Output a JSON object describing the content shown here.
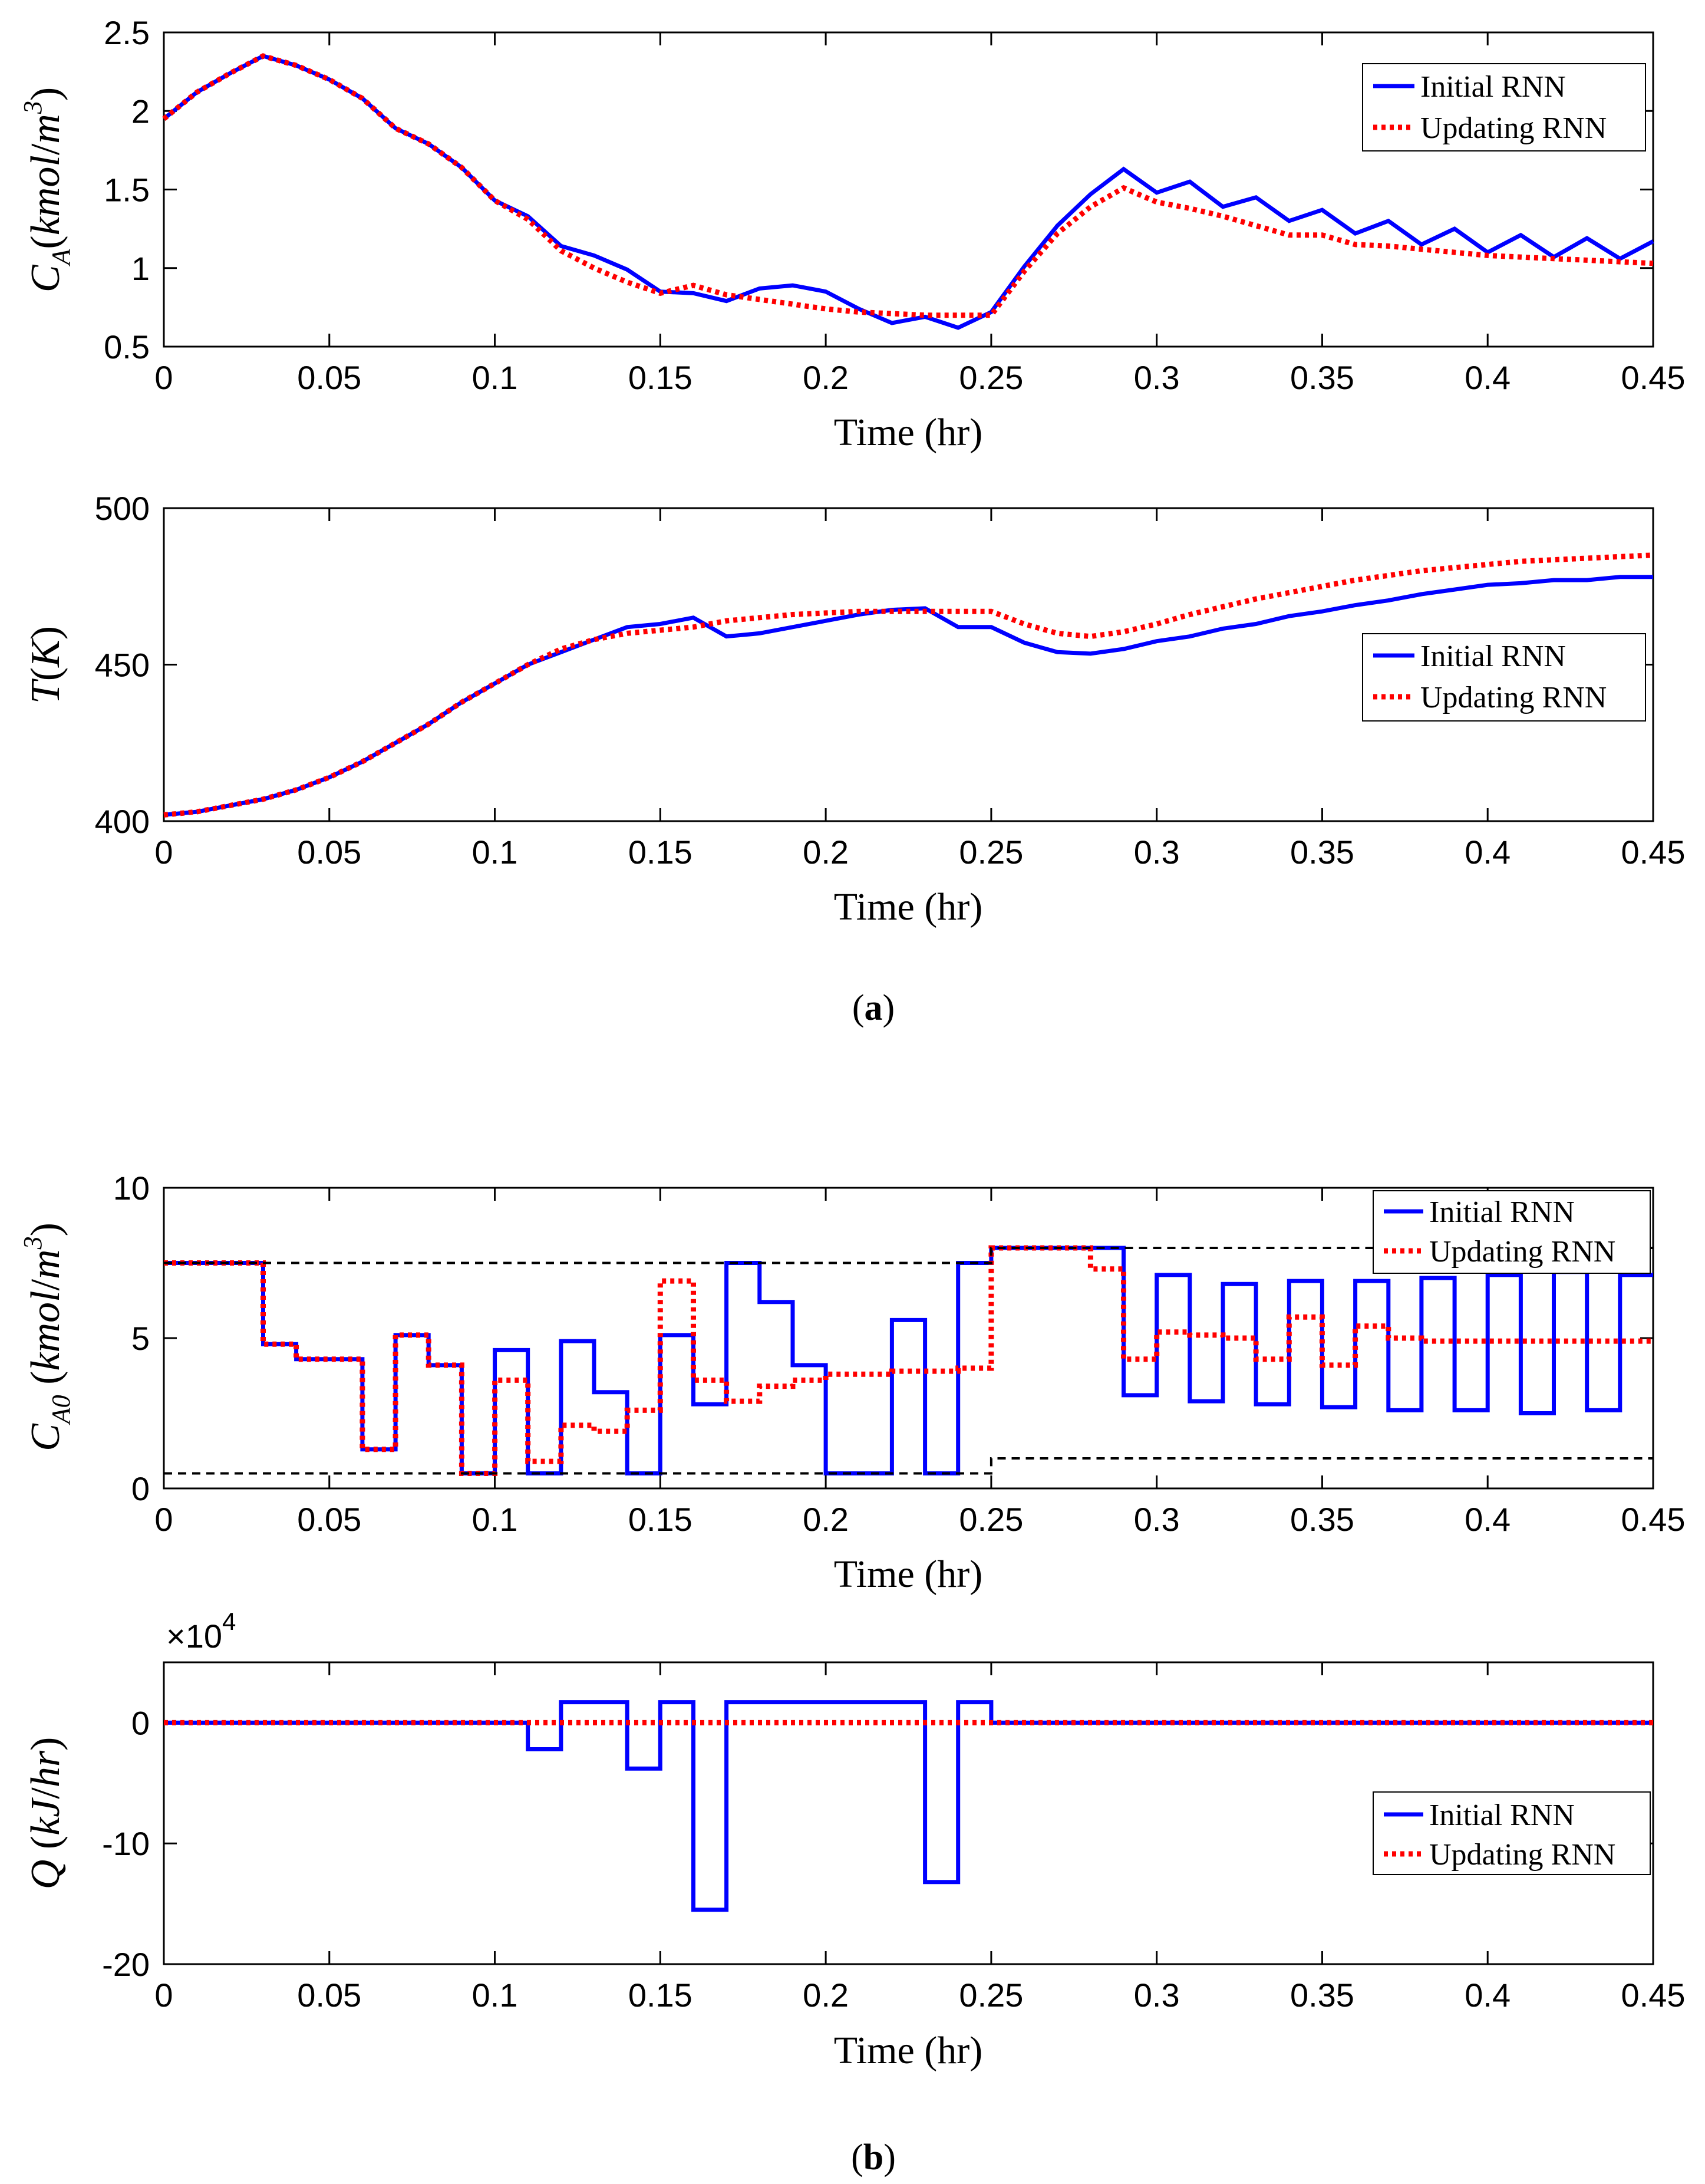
{
  "colors": {
    "initial": "#0000ff",
    "updating": "#ff0000",
    "bound": "#000000"
  },
  "legend": {
    "initial": "Initial RNN",
    "updating": "Updating RNN"
  },
  "captions": {
    "a": "a",
    "b": "b"
  },
  "chart_data": [
    {
      "id": "ca",
      "type": "line",
      "xlabel": "Time (hr)",
      "ylabel": "C_A(kmol/m^3)",
      "xlim": [
        0,
        0.45
      ],
      "ylim": [
        0.5,
        2.5
      ],
      "xticks": [
        0,
        0.05,
        0.1,
        0.15,
        0.2,
        0.25,
        0.3,
        0.35,
        0.4,
        0.45
      ],
      "xticklabels": [
        "0",
        "0.05",
        "0.1",
        "0.15",
        "0.2",
        "0.25",
        "0.3",
        "0.35",
        "0.4",
        "0.45"
      ],
      "yticks": [
        0.5,
        1,
        1.5,
        2,
        2.5
      ],
      "yticklabels": [
        "0.5",
        "1",
        "1.5",
        "2",
        "2.5"
      ],
      "legend_position": "top-right",
      "series": [
        {
          "name": "Initial RNN",
          "style": "solid",
          "x": [
            0,
            0.01,
            0.02,
            0.03,
            0.04,
            0.05,
            0.06,
            0.07,
            0.08,
            0.09,
            0.1,
            0.11,
            0.12,
            0.13,
            0.14,
            0.15,
            0.16,
            0.17,
            0.18,
            0.19,
            0.2,
            0.21,
            0.22,
            0.23,
            0.24,
            0.25,
            0.26,
            0.27,
            0.28,
            0.29,
            0.3,
            0.31,
            0.32,
            0.33,
            0.34,
            0.35,
            0.36,
            0.37,
            0.38,
            0.39,
            0.4,
            0.41,
            0.42,
            0.43,
            0.44,
            0.45
          ],
          "y": [
            1.95,
            2.12,
            2.24,
            2.35,
            2.29,
            2.2,
            2.08,
            1.89,
            1.79,
            1.64,
            1.43,
            1.33,
            1.14,
            1.08,
            0.99,
            0.85,
            0.84,
            0.79,
            0.87,
            0.89,
            0.85,
            0.74,
            0.65,
            0.69,
            0.62,
            0.72,
            1.01,
            1.27,
            1.47,
            1.63,
            1.48,
            1.55,
            1.39,
            1.45,
            1.3,
            1.37,
            1.22,
            1.3,
            1.15,
            1.25,
            1.1,
            1.21,
            1.07,
            1.19,
            1.06,
            1.17
          ]
        },
        {
          "name": "Updating RNN",
          "style": "dotted",
          "x": [
            0,
            0.01,
            0.02,
            0.03,
            0.04,
            0.05,
            0.06,
            0.07,
            0.08,
            0.09,
            0.1,
            0.11,
            0.12,
            0.13,
            0.14,
            0.15,
            0.16,
            0.17,
            0.18,
            0.19,
            0.2,
            0.21,
            0.22,
            0.23,
            0.24,
            0.25,
            0.26,
            0.27,
            0.28,
            0.29,
            0.3,
            0.31,
            0.32,
            0.33,
            0.34,
            0.35,
            0.36,
            0.37,
            0.38,
            0.39,
            0.4,
            0.41,
            0.42,
            0.43,
            0.44,
            0.45
          ],
          "y": [
            1.95,
            2.12,
            2.24,
            2.35,
            2.29,
            2.2,
            2.08,
            1.89,
            1.79,
            1.64,
            1.43,
            1.31,
            1.11,
            1.0,
            0.91,
            0.84,
            0.89,
            0.83,
            0.8,
            0.77,
            0.74,
            0.72,
            0.71,
            0.7,
            0.7,
            0.7,
            0.98,
            1.22,
            1.39,
            1.51,
            1.42,
            1.38,
            1.33,
            1.27,
            1.21,
            1.21,
            1.15,
            1.14,
            1.12,
            1.1,
            1.08,
            1.07,
            1.06,
            1.05,
            1.04,
            1.03
          ]
        }
      ]
    },
    {
      "id": "temp",
      "type": "line",
      "xlabel": "Time (hr)",
      "ylabel": "T(K)",
      "xlim": [
        0,
        0.45
      ],
      "ylim": [
        400,
        500
      ],
      "xticks": [
        0,
        0.05,
        0.1,
        0.15,
        0.2,
        0.25,
        0.3,
        0.35,
        0.4,
        0.45
      ],
      "xticklabels": [
        "0",
        "0.05",
        "0.1",
        "0.15",
        "0.2",
        "0.25",
        "0.3",
        "0.35",
        "0.4",
        "0.45"
      ],
      "yticks": [
        400,
        450,
        500
      ],
      "yticklabels": [
        "400",
        "450",
        "500"
      ],
      "legend_position": "right",
      "series": [
        {
          "name": "Initial RNN",
          "style": "solid",
          "x": [
            0,
            0.01,
            0.02,
            0.03,
            0.04,
            0.05,
            0.06,
            0.07,
            0.08,
            0.09,
            0.1,
            0.11,
            0.12,
            0.13,
            0.14,
            0.15,
            0.16,
            0.17,
            0.18,
            0.19,
            0.2,
            0.21,
            0.22,
            0.23,
            0.24,
            0.25,
            0.26,
            0.27,
            0.28,
            0.29,
            0.3,
            0.31,
            0.32,
            0.33,
            0.34,
            0.35,
            0.36,
            0.37,
            0.38,
            0.39,
            0.4,
            0.41,
            0.42,
            0.43,
            0.44,
            0.45
          ],
          "y": [
            402,
            403,
            405,
            407,
            410,
            414,
            419,
            425,
            431,
            438,
            444,
            450,
            454,
            458,
            462,
            463,
            465,
            459,
            460,
            462,
            464,
            466,
            467.5,
            468,
            462,
            462,
            457,
            454,
            453.5,
            455,
            457.5,
            459,
            461.5,
            463,
            465.5,
            467,
            469,
            470.5,
            472.5,
            474,
            475.5,
            476,
            477,
            477,
            478,
            478
          ]
        },
        {
          "name": "Updating RNN",
          "style": "dotted",
          "x": [
            0,
            0.01,
            0.02,
            0.03,
            0.04,
            0.05,
            0.06,
            0.07,
            0.08,
            0.09,
            0.1,
            0.11,
            0.12,
            0.13,
            0.14,
            0.15,
            0.16,
            0.17,
            0.18,
            0.19,
            0.2,
            0.21,
            0.22,
            0.23,
            0.24,
            0.25,
            0.26,
            0.27,
            0.28,
            0.29,
            0.3,
            0.31,
            0.32,
            0.33,
            0.34,
            0.35,
            0.36,
            0.37,
            0.38,
            0.39,
            0.4,
            0.41,
            0.42,
            0.43,
            0.44,
            0.45
          ],
          "y": [
            402,
            403,
            405,
            407,
            410,
            414,
            419,
            425,
            431,
            438,
            444,
            450,
            455,
            458,
            460,
            461,
            462,
            464,
            465,
            466,
            466.5,
            467,
            467,
            467,
            467,
            467,
            463,
            460,
            459,
            460.5,
            463,
            466,
            468.5,
            471,
            473,
            475,
            477,
            478.5,
            480,
            481,
            482,
            483,
            483.5,
            484,
            484.5,
            485
          ]
        }
      ]
    },
    {
      "id": "ca0",
      "type": "line",
      "xlabel": "Time (hr)",
      "ylabel": "C_A0 (kmol/m^3)",
      "xlim": [
        0,
        0.45
      ],
      "ylim": [
        0,
        10
      ],
      "xticks": [
        0,
        0.05,
        0.1,
        0.15,
        0.2,
        0.25,
        0.3,
        0.35,
        0.4,
        0.45
      ],
      "xticklabels": [
        "0",
        "0.05",
        "0.1",
        "0.15",
        "0.2",
        "0.25",
        "0.3",
        "0.35",
        "0.4",
        "0.45"
      ],
      "yticks": [
        0,
        5,
        10
      ],
      "yticklabels": [
        "0",
        "5",
        "10"
      ],
      "legend_position": "top-right",
      "series": [
        {
          "name": "Initial RNN",
          "style": "solid",
          "step": true,
          "x": [
            0,
            0.01,
            0.02,
            0.03,
            0.04,
            0.05,
            0.06,
            0.07,
            0.08,
            0.09,
            0.1,
            0.11,
            0.12,
            0.13,
            0.14,
            0.15,
            0.16,
            0.17,
            0.18,
            0.19,
            0.2,
            0.21,
            0.22,
            0.23,
            0.24,
            0.25,
            0.26,
            0.27,
            0.28,
            0.29,
            0.3,
            0.31,
            0.32,
            0.33,
            0.34,
            0.35,
            0.36,
            0.37,
            0.38,
            0.39,
            0.4,
            0.41,
            0.42,
            0.43,
            0.44,
            0.45
          ],
          "y": [
            7.5,
            7.5,
            7.5,
            4.8,
            4.3,
            4.3,
            1.3,
            5.1,
            4.1,
            0.5,
            4.6,
            0.5,
            4.9,
            3.2,
            0.5,
            5.1,
            2.8,
            7.5,
            6.2,
            4.1,
            0.5,
            0.5,
            5.6,
            0.5,
            7.5,
            8.0,
            8.0,
            8.0,
            8.0,
            3.1,
            7.1,
            2.9,
            6.8,
            2.8,
            6.9,
            2.7,
            6.9,
            2.6,
            7.0,
            2.6,
            7.1,
            2.5,
            7.2,
            2.6,
            7.1,
            7.1
          ]
        },
        {
          "name": "Updating RNN",
          "style": "dotted",
          "step": true,
          "x": [
            0,
            0.01,
            0.02,
            0.03,
            0.04,
            0.05,
            0.06,
            0.07,
            0.08,
            0.09,
            0.1,
            0.11,
            0.12,
            0.13,
            0.14,
            0.15,
            0.16,
            0.17,
            0.18,
            0.19,
            0.2,
            0.21,
            0.22,
            0.23,
            0.24,
            0.25,
            0.26,
            0.27,
            0.28,
            0.29,
            0.3,
            0.31,
            0.32,
            0.33,
            0.34,
            0.35,
            0.36,
            0.37,
            0.38,
            0.39,
            0.4,
            0.41,
            0.42,
            0.43,
            0.44,
            0.45
          ],
          "y": [
            7.5,
            7.5,
            7.5,
            4.8,
            4.3,
            4.3,
            1.3,
            5.1,
            4.1,
            0.5,
            3.6,
            0.9,
            2.1,
            1.9,
            2.6,
            6.9,
            3.6,
            2.9,
            3.4,
            3.6,
            3.8,
            3.8,
            3.9,
            3.9,
            4.0,
            8.0,
            8.0,
            8.0,
            7.3,
            4.3,
            5.2,
            5.1,
            5.0,
            4.3,
            5.7,
            4.1,
            5.4,
            5.0,
            4.9,
            4.9,
            4.9,
            4.9,
            4.9,
            4.9,
            4.9,
            4.9
          ]
        },
        {
          "name": "",
          "style": "dashed",
          "role": "upper bound",
          "x": [
            0,
            0.25,
            0.25,
            0.45
          ],
          "y": [
            7.5,
            7.5,
            8.0,
            8.0
          ]
        },
        {
          "name": "",
          "style": "dashed",
          "role": "lower bound",
          "x": [
            0,
            0.25,
            0.25,
            0.45
          ],
          "y": [
            0.5,
            0.5,
            1.0,
            1.0
          ]
        }
      ]
    },
    {
      "id": "q",
      "type": "line",
      "xlabel": "Time (hr)",
      "ylabel": "Q (kJ/hr)",
      "multiplier": "×10",
      "multiplier_exp": "4",
      "xlim": [
        0,
        0.45
      ],
      "ylim": [
        -20,
        5
      ],
      "xticks": [
        0,
        0.05,
        0.1,
        0.15,
        0.2,
        0.25,
        0.3,
        0.35,
        0.4,
        0.45
      ],
      "xticklabels": [
        "0",
        "0.05",
        "0.1",
        "0.15",
        "0.2",
        "0.25",
        "0.3",
        "0.35",
        "0.4",
        "0.45"
      ],
      "yticks": [
        -20,
        -10,
        0
      ],
      "yticklabels": [
        "-20",
        "-10",
        "0"
      ],
      "legend_position": "right",
      "series": [
        {
          "name": "Initial RNN",
          "style": "solid",
          "step": true,
          "x": [
            0,
            0.01,
            0.02,
            0.03,
            0.04,
            0.05,
            0.06,
            0.07,
            0.08,
            0.09,
            0.1,
            0.11,
            0.12,
            0.13,
            0.14,
            0.15,
            0.16,
            0.17,
            0.18,
            0.19,
            0.2,
            0.21,
            0.22,
            0.23,
            0.24,
            0.25,
            0.26,
            0.27,
            0.28,
            0.29,
            0.3,
            0.31,
            0.32,
            0.33,
            0.34,
            0.35,
            0.36,
            0.37,
            0.38,
            0.39,
            0.4,
            0.41,
            0.42,
            0.43,
            0.44,
            0.45
          ],
          "y": [
            0,
            0,
            0,
            0,
            0,
            0,
            0,
            0,
            0,
            0,
            0,
            -2.2,
            1.7,
            1.7,
            -3.8,
            1.7,
            -15.5,
            1.7,
            1.7,
            1.7,
            1.7,
            1.7,
            1.7,
            -13.2,
            1.7,
            0,
            0,
            0,
            0,
            0,
            0,
            0,
            0,
            0,
            0,
            0,
            0,
            0,
            0,
            0,
            0,
            0,
            0,
            0,
            0,
            0
          ]
        },
        {
          "name": "Updating RNN",
          "style": "dotted",
          "step": true,
          "x": [
            0,
            0.45
          ],
          "y": [
            0,
            0
          ]
        }
      ]
    }
  ]
}
